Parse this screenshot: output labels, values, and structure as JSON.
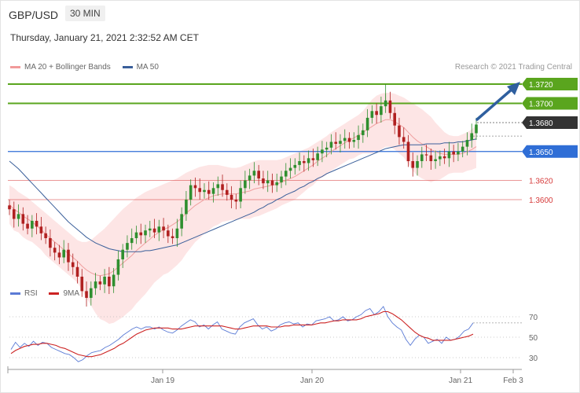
{
  "header": {
    "symbol": "GBP/USD",
    "interval": "30 MIN"
  },
  "timestamp": "Thursday, January 21, 2021 2:32:52 AM CET",
  "legend_main": [
    {
      "label": "MA 20 + Bollinger Bands",
      "color": "#f19a9a"
    },
    {
      "label": "MA 50",
      "color": "#3a5f9a"
    }
  ],
  "credit": "Research © 2021 Trading Central",
  "legend_rsi": [
    {
      "label": "RSI",
      "color": "#5b7bd5"
    },
    {
      "label": "9MA",
      "color": "#cc2222"
    }
  ],
  "colors": {
    "resistance": "#5aa51e",
    "support_line": "#2f6ed6",
    "red_level": "#d63a3a",
    "current_tag": "#333333",
    "candle_up": "#2f8f2f",
    "candle_down": "#b02020",
    "band_fill": "#fde0e0",
    "ma20": "#f0a0a0",
    "ma50": "#3a5f9a",
    "arrow": "#2f5f9f"
  },
  "chart_data": [
    {
      "type": "candlestick",
      "title": "GBP/USD 30 MIN",
      "ylim": [
        1.357,
        1.374
      ],
      "x_ticks": [
        "Jan 19",
        "Jan 20",
        "Jan 21",
        "Feb 3"
      ],
      "price_levels": [
        {
          "value": 1.372,
          "label": "1.3720",
          "style": "resistance"
        },
        {
          "value": 1.37,
          "label": "1.3700",
          "style": "resistance"
        },
        {
          "value": 1.368,
          "label": "1.3680",
          "style": "current"
        },
        {
          "value": 1.365,
          "label": "1.3650",
          "style": "support"
        },
        {
          "value": 1.362,
          "label": "1.3620",
          "style": "red"
        },
        {
          "value": 1.36,
          "label": "1.3600",
          "style": "red"
        }
      ],
      "close_series": [
        1.359,
        1.358,
        1.3585,
        1.3575,
        1.357,
        1.3578,
        1.3572,
        1.3565,
        1.356,
        1.355,
        1.3545,
        1.354,
        1.3548,
        1.3535,
        1.353,
        1.352,
        1.3505,
        1.3498,
        1.3508,
        1.3515,
        1.3512,
        1.352,
        1.351,
        1.3522,
        1.3538,
        1.3548,
        1.3555,
        1.356,
        1.3566,
        1.3563,
        1.3568,
        1.357,
        1.3566,
        1.3572,
        1.3568,
        1.3562,
        1.356,
        1.357,
        1.3585,
        1.36,
        1.3615,
        1.3612,
        1.3608,
        1.361,
        1.3606,
        1.3612,
        1.3616,
        1.361,
        1.3605,
        1.36,
        1.3598,
        1.3612,
        1.362,
        1.3625,
        1.363,
        1.3622,
        1.3617,
        1.362,
        1.3615,
        1.3618,
        1.3624,
        1.363,
        1.3633,
        1.3636,
        1.364,
        1.3638,
        1.3643,
        1.3641,
        1.3648,
        1.3652,
        1.3654,
        1.366,
        1.3658,
        1.3661,
        1.3664,
        1.366,
        1.3662,
        1.3667,
        1.3672,
        1.3685,
        1.3692,
        1.3688,
        1.3697,
        1.3703,
        1.369,
        1.3677,
        1.3665,
        1.366,
        1.364,
        1.3633,
        1.364,
        1.3647,
        1.3646,
        1.364,
        1.3642,
        1.3645,
        1.3643,
        1.365,
        1.3647,
        1.365,
        1.3655,
        1.3662,
        1.3669,
        1.3678
      ],
      "ma20_series": [
        1.3595,
        1.359,
        1.3587,
        1.3583,
        1.358,
        1.3577,
        1.3573,
        1.3569,
        1.3564,
        1.356,
        1.3556,
        1.3552,
        1.3548,
        1.3544,
        1.354,
        1.3536,
        1.3531,
        1.3527,
        1.3524,
        1.3522,
        1.3521,
        1.3522,
        1.3523,
        1.3526,
        1.353,
        1.3534,
        1.3538,
        1.3542,
        1.3547,
        1.3551,
        1.3555,
        1.3559,
        1.3563,
        1.3566,
        1.3569,
        1.3571,
        1.3574,
        1.3577,
        1.3581,
        1.3586,
        1.359,
        1.3594,
        1.3597,
        1.36,
        1.3602,
        1.3604,
        1.3605,
        1.3606,
        1.3606,
        1.3606,
        1.3606,
        1.3607,
        1.3608,
        1.3609,
        1.3611,
        1.3612,
        1.3613,
        1.3614,
        1.3615,
        1.3616,
        1.3618,
        1.362,
        1.3622,
        1.3624,
        1.3627,
        1.363,
        1.3633,
        1.3636,
        1.364,
        1.3643,
        1.3646,
        1.365,
        1.3653,
        1.3656,
        1.3659,
        1.3662,
        1.3664,
        1.3667,
        1.367,
        1.3673,
        1.3676,
        1.3679,
        1.3681,
        1.3683,
        1.3683,
        1.3681,
        1.3678,
        1.3675,
        1.367,
        1.3665,
        1.3661,
        1.3658,
        1.3655,
        1.3652,
        1.365,
        1.3648,
        1.3647,
        1.3647,
        1.3647,
        1.3647,
        1.3648,
        1.365,
        1.3652,
        1.3655
      ],
      "upper_band_series": [
        1.3615,
        1.3612,
        1.3608,
        1.3605,
        1.3602,
        1.3598,
        1.3594,
        1.359,
        1.3586,
        1.3582,
        1.3578,
        1.3574,
        1.357,
        1.3566,
        1.3562,
        1.3558,
        1.3556,
        1.3556,
        1.3558,
        1.3562,
        1.3566,
        1.357,
        1.3575,
        1.358,
        1.3585,
        1.359,
        1.3594,
        1.3598,
        1.3602,
        1.3605,
        1.3608,
        1.361,
        1.3612,
        1.3614,
        1.3616,
        1.3618,
        1.362,
        1.3622,
        1.3625,
        1.3628,
        1.363,
        1.3632,
        1.3634,
        1.3635,
        1.3636,
        1.3636,
        1.3636,
        1.3635,
        1.3634,
        1.3633,
        1.3633,
        1.3634,
        1.3636,
        1.3638,
        1.364,
        1.3641,
        1.3641,
        1.3641,
        1.3641,
        1.3641,
        1.3642,
        1.3644,
        1.3646,
        1.3648,
        1.365,
        1.3652,
        1.3654,
        1.3657,
        1.366,
        1.3663,
        1.3666,
        1.367,
        1.3673,
        1.3676,
        1.3679,
        1.3682,
        1.3685,
        1.3688,
        1.3692,
        1.3698,
        1.3704,
        1.3708,
        1.371,
        1.3711,
        1.3711,
        1.371,
        1.3708,
        1.3706,
        1.3703,
        1.37,
        1.3697,
        1.3694,
        1.369,
        1.3686,
        1.368,
        1.3675,
        1.367,
        1.3667,
        1.3666,
        1.3666,
        1.3668,
        1.367,
        1.3673,
        1.3677
      ],
      "lower_band_series": [
        1.3575,
        1.3568,
        1.3566,
        1.3561,
        1.3558,
        1.3556,
        1.3552,
        1.3548,
        1.3542,
        1.3538,
        1.3534,
        1.353,
        1.3526,
        1.3522,
        1.3518,
        1.3514,
        1.3506,
        1.3498,
        1.349,
        1.3482,
        1.3476,
        1.3474,
        1.3471,
        1.3472,
        1.3475,
        1.3478,
        1.3482,
        1.3486,
        1.3492,
        1.3497,
        1.3502,
        1.3508,
        1.3514,
        1.3518,
        1.3522,
        1.3524,
        1.3528,
        1.3532,
        1.3537,
        1.3544,
        1.355,
        1.3556,
        1.356,
        1.3565,
        1.3568,
        1.3572,
        1.3574,
        1.3577,
        1.3578,
        1.3579,
        1.3579,
        1.358,
        1.358,
        1.358,
        1.3582,
        1.3583,
        1.3585,
        1.3587,
        1.3589,
        1.3591,
        1.3594,
        1.3596,
        1.3598,
        1.36,
        1.3604,
        1.3608,
        1.3612,
        1.3615,
        1.362,
        1.3623,
        1.3626,
        1.363,
        1.3633,
        1.3636,
        1.3639,
        1.3642,
        1.3643,
        1.3646,
        1.3648,
        1.3648,
        1.3648,
        1.365,
        1.3652,
        1.3655,
        1.3655,
        1.3652,
        1.3648,
        1.3644,
        1.3637,
        1.363,
        1.3625,
        1.3622,
        1.362,
        1.3618,
        1.362,
        1.3621,
        1.3624,
        1.3627,
        1.3628,
        1.3628,
        1.3628,
        1.363,
        1.3631,
        1.3633
      ],
      "ma50_series": [
        1.364,
        1.3636,
        1.3632,
        1.3627,
        1.3622,
        1.3617,
        1.3612,
        1.3607,
        1.3602,
        1.3597,
        1.3592,
        1.3587,
        1.3582,
        1.3577,
        1.3573,
        1.3569,
        1.3565,
        1.3561,
        1.3558,
        1.3555,
        1.3553,
        1.3551,
        1.3549,
        1.3548,
        1.3547,
        1.3546,
        1.3546,
        1.3546,
        1.3546,
        1.3546,
        1.3547,
        1.3547,
        1.3548,
        1.3549,
        1.355,
        1.3551,
        1.3552,
        1.3553,
        1.3555,
        1.3557,
        1.3559,
        1.3561,
        1.3563,
        1.3565,
        1.3567,
        1.3569,
        1.3571,
        1.3573,
        1.3575,
        1.3577,
        1.3579,
        1.3581,
        1.3583,
        1.3585,
        1.3587,
        1.359,
        1.3592,
        1.3595,
        1.3597,
        1.36,
        1.3602,
        1.3605,
        1.3607,
        1.3609,
        1.3612,
        1.3614,
        1.3617,
        1.3619,
        1.3622,
        1.3624,
        1.3627,
        1.3629,
        1.3631,
        1.3633,
        1.3635,
        1.3637,
        1.3639,
        1.3641,
        1.3643,
        1.3645,
        1.3647,
        1.3649,
        1.3651,
        1.3653,
        1.3654,
        1.3655,
        1.3656,
        1.3657,
        1.3657,
        1.3657,
        1.3657,
        1.3657,
        1.3658,
        1.3658,
        1.3658,
        1.3658,
        1.3659,
        1.3659,
        1.3659,
        1.366,
        1.366,
        1.3661,
        1.3662,
        1.3663
      ]
    },
    {
      "type": "line",
      "title": "RSI",
      "ylim": [
        20,
        82
      ],
      "y_ticks": [
        70,
        50,
        30
      ],
      "series": [
        {
          "name": "RSI",
          "values": [
            38,
            45,
            40,
            44,
            41,
            46,
            42,
            45,
            44,
            40,
            38,
            36,
            34,
            33,
            30,
            26,
            28,
            32,
            35,
            36,
            37,
            40,
            42,
            45,
            48,
            52,
            55,
            58,
            60,
            58,
            60,
            60,
            58,
            60,
            57,
            55,
            54,
            57,
            61,
            64,
            67,
            65,
            60,
            62,
            58,
            62,
            65,
            58,
            56,
            54,
            53,
            60,
            64,
            66,
            68,
            62,
            58,
            60,
            56,
            58,
            62,
            64,
            65,
            63,
            64,
            60,
            63,
            62,
            66,
            67,
            68,
            70,
            66,
            67,
            70,
            66,
            67,
            70,
            72,
            76,
            78,
            72,
            75,
            80,
            70,
            64,
            60,
            57,
            48,
            42,
            48,
            52,
            50,
            44,
            46,
            48,
            44,
            50,
            47,
            48,
            51,
            56,
            58,
            64
          ]
        },
        {
          "name": "9MA",
          "values": [
            34,
            37,
            39,
            41,
            42,
            43,
            43,
            44,
            44,
            43,
            42,
            40,
            39,
            37,
            35,
            33,
            32,
            31,
            31,
            32,
            33,
            35,
            37,
            39,
            42,
            44,
            47,
            50,
            53,
            55,
            57,
            58,
            59,
            59,
            59,
            59,
            58,
            58,
            58,
            59,
            60,
            61,
            61,
            61,
            61,
            61,
            61,
            61,
            60,
            59,
            58,
            58,
            59,
            60,
            61,
            61,
            61,
            61,
            60,
            60,
            60,
            61,
            61,
            62,
            62,
            62,
            62,
            62,
            63,
            64,
            64,
            65,
            66,
            66,
            67,
            67,
            67,
            67,
            68,
            70,
            71,
            72,
            73,
            75,
            75,
            73,
            70,
            67,
            63,
            59,
            55,
            52,
            50,
            49,
            47,
            47,
            47,
            47,
            47,
            48,
            49,
            50,
            51,
            53
          ]
        }
      ]
    }
  ]
}
